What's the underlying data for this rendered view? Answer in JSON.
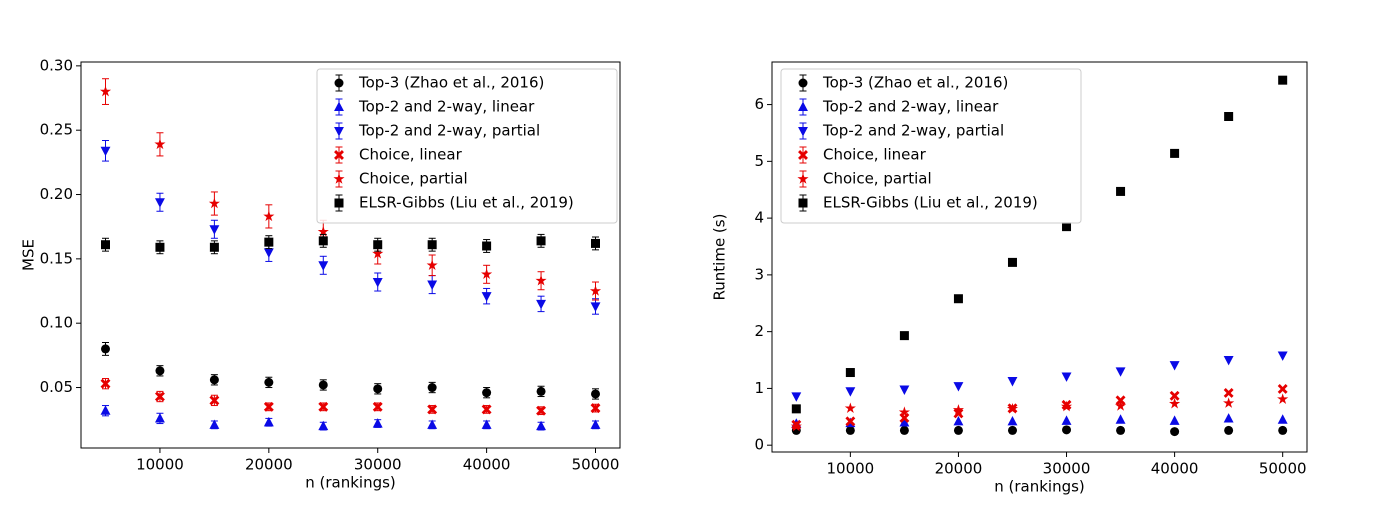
{
  "chart_data": [
    {
      "type": "scatter",
      "xlabel": "n (rankings)",
      "ylabel": "MSE",
      "x": [
        5000,
        10000,
        15000,
        20000,
        25000,
        30000,
        35000,
        40000,
        45000,
        50000
      ],
      "xlim": [
        2750,
        52250
      ],
      "xticks": [
        10000,
        20000,
        30000,
        40000,
        50000
      ],
      "ylim": [
        0.003,
        0.303
      ],
      "yticks": [
        0.05,
        {
          "value": 0.1,
          "label": "0.10"
        },
        0.15,
        {
          "value": 0.2,
          "label": "0.20"
        },
        0.25,
        {
          "value": 0.3,
          "label": "0.30"
        }
      ],
      "legend": "upper right",
      "series": [
        {
          "name": "Top-3 (Zhao et al., 2016)",
          "color": "#000000",
          "marker": "circle",
          "values": [
            0.08,
            0.063,
            0.056,
            0.054,
            0.052,
            0.049,
            0.05,
            0.046,
            0.047,
            0.045
          ],
          "errors": [
            0.005,
            0.004,
            0.004,
            0.004,
            0.004,
            0.004,
            0.004,
            0.004,
            0.004,
            0.004
          ]
        },
        {
          "name": "Top-2 and 2-way, linear",
          "color": "#0a0ae6",
          "marker": "triangle-up",
          "values": [
            0.032,
            0.026,
            0.021,
            0.023,
            0.02,
            0.022,
            0.021,
            0.021,
            0.02,
            0.021
          ],
          "errors": [
            0.004,
            0.004,
            0.003,
            0.003,
            0.003,
            0.003,
            0.003,
            0.003,
            0.003,
            0.003
          ]
        },
        {
          "name": "Top-2 and 2-way, partial",
          "color": "#0a0ae6",
          "marker": "triangle-down",
          "values": [
            0.234,
            0.194,
            0.173,
            0.155,
            0.145,
            0.132,
            0.13,
            0.121,
            0.115,
            0.113
          ],
          "errors": [
            0.008,
            0.007,
            0.007,
            0.007,
            0.007,
            0.007,
            0.007,
            0.006,
            0.006,
            0.006
          ]
        },
        {
          "name": "Choice, linear",
          "color": "#e60000",
          "marker": "x",
          "values": [
            0.053,
            0.043,
            0.04,
            0.035,
            0.035,
            0.035,
            0.033,
            0.033,
            0.032,
            0.034
          ],
          "errors": [
            0.004,
            0.004,
            0.004,
            0.003,
            0.003,
            0.003,
            0.003,
            0.003,
            0.003,
            0.003
          ]
        },
        {
          "name": "Choice, partial",
          "color": "#e60000",
          "marker": "star",
          "values": [
            0.28,
            0.239,
            0.193,
            0.183,
            0.171,
            0.154,
            0.145,
            0.138,
            0.133,
            0.125
          ],
          "errors": [
            0.01,
            0.009,
            0.009,
            0.009,
            0.009,
            0.008,
            0.008,
            0.007,
            0.007,
            0.007
          ]
        },
        {
          "name": "ELSR-Gibbs (Liu et al., 2019)",
          "color": "#000000",
          "marker": "square",
          "values": [
            0.161,
            0.159,
            0.159,
            0.163,
            0.164,
            0.161,
            0.161,
            0.16,
            0.164,
            0.162
          ],
          "errors": [
            0.005,
            0.005,
            0.005,
            0.005,
            0.005,
            0.005,
            0.005,
            0.005,
            0.005,
            0.005
          ]
        }
      ]
    },
    {
      "type": "scatter",
      "xlabel": "n (rankings)",
      "ylabel": "Runtime (s)",
      "x": [
        5000,
        10000,
        15000,
        20000,
        25000,
        30000,
        35000,
        40000,
        45000,
        50000
      ],
      "xlim": [
        2750,
        52250
      ],
      "xticks": [
        10000,
        20000,
        30000,
        40000,
        50000
      ],
      "ylim": [
        -0.12,
        6.75
      ],
      "yticks": [
        0,
        1,
        2,
        3,
        4,
        5,
        6
      ],
      "legend": "upper left",
      "series": [
        {
          "name": "Top-3 (Zhao et al., 2016)",
          "color": "#000000",
          "marker": "circle",
          "values": [
            0.26,
            0.26,
            0.26,
            0.26,
            0.26,
            0.27,
            0.26,
            0.24,
            0.26,
            0.26
          ]
        },
        {
          "name": "Top-2 and 2-way, linear",
          "color": "#0a0ae6",
          "marker": "triangle-up",
          "values": [
            0.38,
            0.39,
            0.4,
            0.42,
            0.42,
            0.43,
            0.45,
            0.43,
            0.47,
            0.45
          ]
        },
        {
          "name": "Top-2 and 2-way, partial",
          "color": "#0a0ae6",
          "marker": "triangle-down",
          "values": [
            0.86,
            0.95,
            0.98,
            1.04,
            1.13,
            1.21,
            1.3,
            1.41,
            1.5,
            1.58
          ]
        },
        {
          "name": "Choice, linear",
          "color": "#e60000",
          "marker": "x",
          "values": [
            0.36,
            0.42,
            0.48,
            0.56,
            0.65,
            0.71,
            0.79,
            0.87,
            0.92,
            0.99
          ]
        },
        {
          "name": "Choice, partial",
          "color": "#e60000",
          "marker": "star",
          "values": [
            0.33,
            0.65,
            0.58,
            0.62,
            0.64,
            0.68,
            0.69,
            0.73,
            0.74,
            0.81
          ]
        },
        {
          "name": "ELSR-Gibbs (Liu et al., 2019)",
          "color": "#000000",
          "marker": "square",
          "values": [
            0.64,
            1.28,
            1.93,
            2.58,
            3.22,
            3.85,
            4.47,
            5.14,
            5.79,
            6.43
          ]
        }
      ]
    }
  ]
}
